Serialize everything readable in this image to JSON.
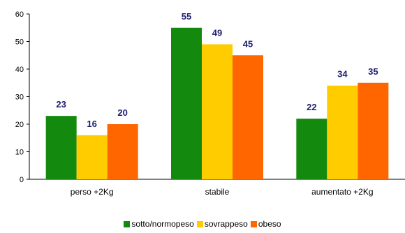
{
  "chart_data": {
    "type": "bar",
    "categories": [
      "perso +2Kg",
      "stabile",
      "aumentato +2Kg"
    ],
    "series": [
      {
        "name": "sotto/normopeso",
        "color": "#138a0e",
        "values": [
          23,
          55,
          22
        ]
      },
      {
        "name": "sovrappeso",
        "color": "#ffcc00",
        "values": [
          16,
          49,
          34
        ]
      },
      {
        "name": "obeso",
        "color": "#ff6600",
        "values": [
          20,
          45,
          35
        ]
      }
    ],
    "ylim": [
      0,
      60
    ],
    "yticks": [
      0,
      10,
      20,
      30,
      40,
      50,
      60
    ],
    "grid": false,
    "legend_position": "bottom",
    "data_label_color": "#1f1f70"
  }
}
